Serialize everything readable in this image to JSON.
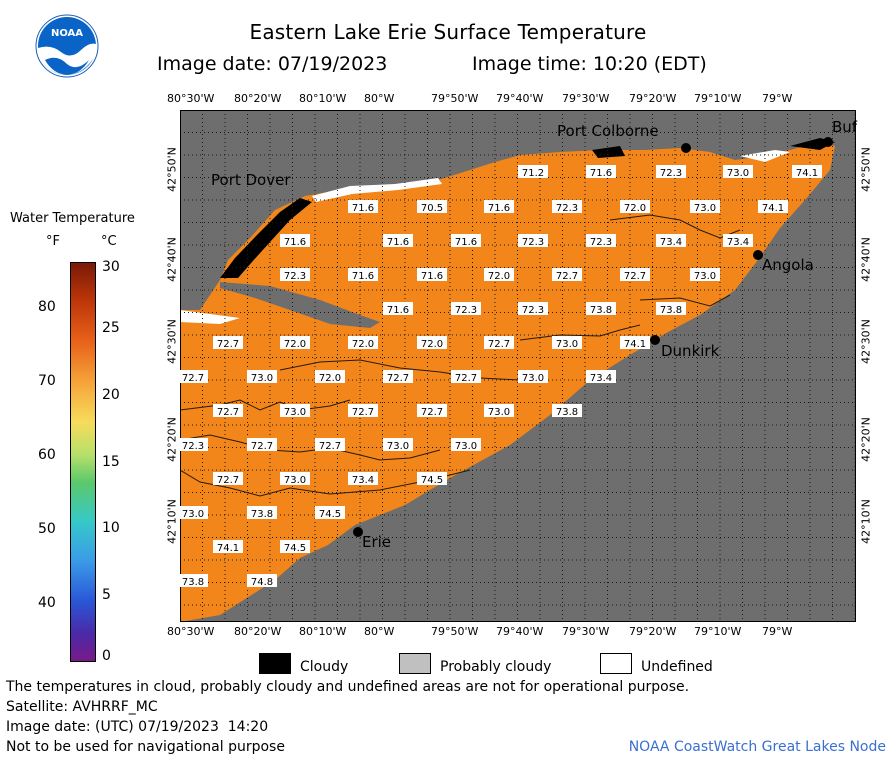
{
  "header": {
    "title": "Eastern Lake Erie Surface Temperature",
    "image_date": "Image date: 07/19/2023",
    "image_time": "Image time: 10:20 (EDT)"
  },
  "logo": {
    "text": "NOAA"
  },
  "legend": {
    "title": "Water Temperature",
    "unit_f": "°F",
    "unit_c": "°C",
    "f_ticks": [
      "80",
      "70",
      "60",
      "50",
      "40"
    ],
    "c_ticks": [
      "30",
      "25",
      "20",
      "15",
      "10",
      "5",
      "0"
    ]
  },
  "axes": {
    "lon_labels": [
      "80°30'W",
      "80°20'W",
      "80°10'W",
      "80°W",
      "79°50'W",
      "79°40'W",
      "79°30'W",
      "79°20'W",
      "79°10'W",
      "79°W"
    ],
    "lat_labels": [
      "42°50'N",
      "42°40'N",
      "42°30'N",
      "42°20'N",
      "42°10'N"
    ]
  },
  "places": {
    "port_colborne": "Port Colborne",
    "port_dover": "Port Dover",
    "buffalo": "Buf",
    "angola": "Angola",
    "dunkirk": "Dunkirk",
    "erie": "Erie"
  },
  "temperatures": [
    "71.2",
    "71.6",
    "72.3",
    "73.0",
    "74.1",
    "71.6",
    "70.5",
    "71.6",
    "72.3",
    "72.0",
    "73.0",
    "74.1",
    "71.6",
    "71.6",
    "71.6",
    "72.3",
    "72.3",
    "73.4",
    "73.4",
    "72.3",
    "71.6",
    "71.6",
    "72.0",
    "72.7",
    "72.7",
    "73.0",
    "71.6",
    "72.3",
    "72.3",
    "73.8",
    "73.8",
    "72.7",
    "72.0",
    "72.0",
    "72.0",
    "72.7",
    "73.0",
    "74.1",
    "72.7",
    "73.0",
    "72.0",
    "72.7",
    "72.7",
    "73.0",
    "73.4",
    "72.7",
    "73.0",
    "72.7",
    "72.7",
    "73.0",
    "73.8",
    "72.3",
    "72.7",
    "72.7",
    "73.0",
    "73.0",
    "72.7",
    "73.0",
    "73.4",
    "74.5",
    "73.0",
    "73.8",
    "74.5",
    "74.1",
    "74.5",
    "73.8",
    "74.8"
  ],
  "key": {
    "cloudy": "Cloudy",
    "probably_cloudy": "Probably cloudy",
    "undefined": "Undefined",
    "cloudy_color": "#000000",
    "probably_cloudy_color": "#c0c0c0",
    "undefined_color": "#ffffff"
  },
  "footer": {
    "disclaimer": "The temperatures in cloud, probably cloudy and undefined areas are not for operational purpose.",
    "satellite": "Satellite: AVHRRF_MC",
    "utc_date": "Image date: (UTC) 07/19/2023  14:20",
    "nav": "Not to be used for navigational purpose",
    "credit": "NOAA CoastWatch Great Lakes Node"
  },
  "colors": {
    "land": "#6e6e6e",
    "water": "#f2861a",
    "accent_blue": "#3a6fd1"
  }
}
